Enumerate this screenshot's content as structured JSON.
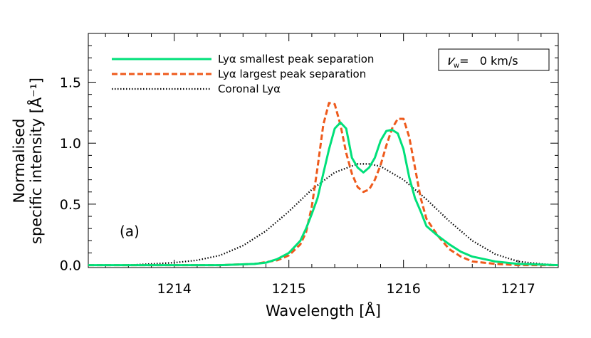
{
  "chart_data": {
    "type": "line",
    "title": "",
    "xlabel": "Wavelength [Å]",
    "ylabel_line1": "Normalised",
    "ylabel_line2": "specific intensity [Å⁻¹]",
    "xlim": [
      1213.25,
      1217.35
    ],
    "ylim": [
      -0.02,
      1.9
    ],
    "xticks": [
      1214,
      1215,
      1216,
      1217
    ],
    "xtick_labels": [
      "1214",
      "1215",
      "1216",
      "1217"
    ],
    "yticks": [
      0.0,
      0.5,
      1.0,
      1.5
    ],
    "ytick_labels": [
      "0.0",
      "0.5",
      "1.0",
      "1.5"
    ],
    "grid": false,
    "legend_position": "top-left",
    "panel_label": "(a)",
    "annotation": "𝑣w=   0 km/s",
    "annotation_parts": {
      "symbol": "𝑣",
      "subscript": "w",
      "value": "=   0 km/s"
    },
    "series": [
      {
        "name": "Lyα smallest peak separation",
        "color": "#00e07a",
        "style": "solid",
        "x": [
          1213.25,
          1214.4,
          1214.7,
          1214.8,
          1214.9,
          1215.0,
          1215.1,
          1215.15,
          1215.2,
          1215.25,
          1215.3,
          1215.35,
          1215.4,
          1215.45,
          1215.5,
          1215.55,
          1215.6,
          1215.65,
          1215.7,
          1215.75,
          1215.8,
          1215.85,
          1215.9,
          1215.95,
          1216.0,
          1216.05,
          1216.1,
          1216.15,
          1216.2,
          1216.3,
          1216.4,
          1216.5,
          1216.6,
          1216.8,
          1217.0,
          1217.35
        ],
        "y": [
          0.0,
          0.0,
          0.01,
          0.02,
          0.05,
          0.1,
          0.2,
          0.3,
          0.42,
          0.55,
          0.75,
          0.95,
          1.12,
          1.17,
          1.12,
          0.88,
          0.8,
          0.76,
          0.8,
          0.88,
          1.02,
          1.1,
          1.11,
          1.08,
          0.95,
          0.72,
          0.55,
          0.44,
          0.32,
          0.24,
          0.17,
          0.11,
          0.07,
          0.03,
          0.01,
          0.0
        ]
      },
      {
        "name": "Lyα largest peak separation",
        "color": "#ee5a1c",
        "style": "dashed",
        "x": [
          1213.25,
          1214.4,
          1214.7,
          1214.9,
          1215.0,
          1215.1,
          1215.15,
          1215.2,
          1215.25,
          1215.3,
          1215.35,
          1215.4,
          1215.45,
          1215.5,
          1215.55,
          1215.6,
          1215.65,
          1215.7,
          1215.75,
          1215.8,
          1215.85,
          1215.9,
          1215.95,
          1216.0,
          1216.05,
          1216.1,
          1216.15,
          1216.2,
          1216.3,
          1216.4,
          1216.5,
          1216.6,
          1216.8,
          1217.0,
          1217.35
        ],
        "y": [
          0.0,
          0.0,
          0.01,
          0.04,
          0.08,
          0.17,
          0.27,
          0.48,
          0.8,
          1.15,
          1.33,
          1.32,
          1.15,
          0.92,
          0.75,
          0.64,
          0.6,
          0.62,
          0.7,
          0.82,
          0.98,
          1.12,
          1.2,
          1.2,
          1.05,
          0.8,
          0.55,
          0.38,
          0.24,
          0.13,
          0.07,
          0.03,
          0.01,
          0.0,
          0.0
        ]
      },
      {
        "name": "Coronal Lyα",
        "color": "#000000",
        "style": "dotted",
        "x": [
          1213.25,
          1213.6,
          1213.8,
          1214.0,
          1214.2,
          1214.4,
          1214.6,
          1214.8,
          1215.0,
          1215.2,
          1215.4,
          1215.6,
          1215.7,
          1215.8,
          1216.0,
          1216.2,
          1216.4,
          1216.6,
          1216.8,
          1217.0,
          1217.2,
          1217.35
        ],
        "y": [
          0.0,
          0.0,
          0.01,
          0.02,
          0.04,
          0.08,
          0.16,
          0.28,
          0.44,
          0.62,
          0.76,
          0.83,
          0.83,
          0.81,
          0.7,
          0.54,
          0.36,
          0.2,
          0.09,
          0.03,
          0.01,
          0.0
        ]
      }
    ]
  }
}
